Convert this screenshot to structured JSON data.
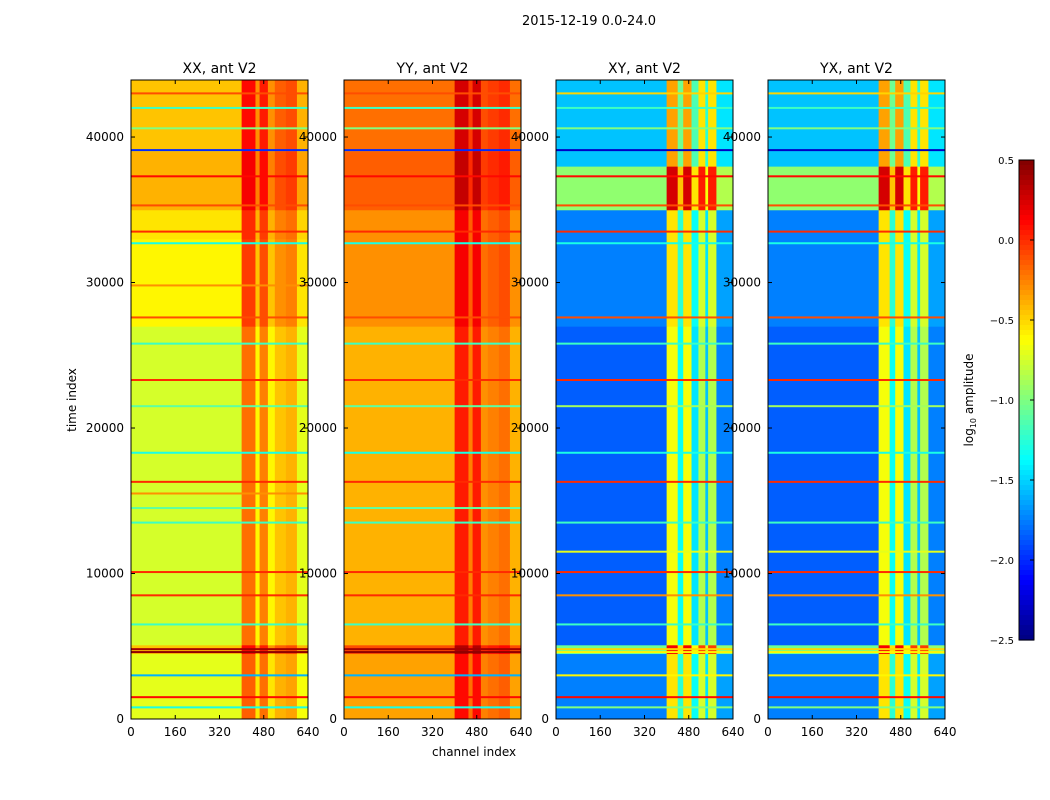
{
  "figure": {
    "suptitle": "2015-12-19 0.0-24.0",
    "ylabel": "time index",
    "xlabel": "channel index",
    "colorbar_label_prefix": "log",
    "colorbar_label_sub": "10",
    "colorbar_label_suffix": " amplitude"
  },
  "chart_data": {
    "type": "heatmap",
    "colormap": "jet",
    "clim": [
      -2.5,
      0.5
    ],
    "colorbar_ticks": [
      "0.5",
      "0.0",
      "−0.5",
      "−1.0",
      "−1.5",
      "−2.0",
      "−2.5"
    ],
    "colorbar_tick_values": [
      0.5,
      0.0,
      -0.5,
      -1.0,
      -1.5,
      -2.0,
      -2.5
    ],
    "xlim": [
      0,
      640
    ],
    "ylim": [
      0,
      43920
    ],
    "xticks": [
      0,
      160,
      320,
      480,
      640
    ],
    "yticks": [
      0,
      10000,
      20000,
      30000,
      40000
    ],
    "panels": [
      {
        "title": "XX, ant V2",
        "base": -0.75,
        "col_bands": [
          [
            0,
            400,
            0
          ],
          [
            400,
            450,
            0.55
          ],
          [
            450,
            465,
            0.15
          ],
          [
            465,
            495,
            0.5
          ],
          [
            495,
            520,
            0.15
          ],
          [
            520,
            560,
            0.3
          ],
          [
            560,
            600,
            0.35
          ],
          [
            600,
            640,
            0.05
          ]
        ],
        "row_segments": [
          [
            0,
            4500,
            0.05
          ],
          [
            4500,
            5100,
            0.3
          ],
          [
            5100,
            27000,
            0
          ],
          [
            27000,
            33000,
            0.15
          ],
          [
            33000,
            35000,
            0.2
          ],
          [
            35000,
            39000,
            0.35
          ],
          [
            39000,
            43920,
            0.3
          ]
        ],
        "stripes": [
          [
            800,
            -1.3
          ],
          [
            1500,
            0.1
          ],
          [
            3000,
            -1.6
          ],
          [
            4600,
            0.45
          ],
          [
            4800,
            0.4
          ],
          [
            6500,
            -1.2
          ],
          [
            8500,
            0.0
          ],
          [
            10100,
            0.0
          ],
          [
            13500,
            -1.2
          ],
          [
            14500,
            -1.1
          ],
          [
            15500,
            -0.3
          ],
          [
            16300,
            0.0
          ],
          [
            18300,
            -1.3
          ],
          [
            21500,
            -1.1
          ],
          [
            23300,
            0.0
          ],
          [
            25800,
            -1.2
          ],
          [
            27600,
            -0.1
          ],
          [
            29800,
            -0.3
          ],
          [
            32700,
            -1.3
          ],
          [
            33500,
            0.0
          ],
          [
            35300,
            -0.1
          ],
          [
            37300,
            0.1
          ],
          [
            39100,
            -2.0
          ],
          [
            40600,
            -1.0
          ],
          [
            42000,
            -1.2
          ],
          [
            43000,
            -0.1
          ]
        ]
      },
      {
        "title": "YY, ant V2",
        "base": -0.4,
        "col_bands": [
          [
            0,
            400,
            0
          ],
          [
            400,
            450,
            0.45
          ],
          [
            450,
            465,
            0.15
          ],
          [
            465,
            495,
            0.45
          ],
          [
            495,
            520,
            0.1
          ],
          [
            520,
            560,
            0.15
          ],
          [
            560,
            600,
            0.2
          ],
          [
            600,
            640,
            0.0
          ]
        ],
        "row_segments": [
          [
            0,
            4500,
            0.05
          ],
          [
            4500,
            5100,
            0.3
          ],
          [
            5100,
            27000,
            0
          ],
          [
            27000,
            33000,
            0.1
          ],
          [
            33000,
            35000,
            0.1
          ],
          [
            35000,
            39000,
            0.25
          ],
          [
            39000,
            43920,
            0.2
          ]
        ],
        "stripes": [
          [
            800,
            -1.3
          ],
          [
            1500,
            0.1
          ],
          [
            3000,
            -1.6
          ],
          [
            4600,
            0.45
          ],
          [
            4800,
            0.4
          ],
          [
            6500,
            -1.2
          ],
          [
            8500,
            0.0
          ],
          [
            10100,
            0.0
          ],
          [
            13500,
            -1.2
          ],
          [
            14500,
            -1.1
          ],
          [
            16300,
            0.0
          ],
          [
            18300,
            -1.3
          ],
          [
            21500,
            -1.1
          ],
          [
            23300,
            0.0
          ],
          [
            25800,
            -1.2
          ],
          [
            27600,
            -0.1
          ],
          [
            32700,
            -1.3
          ],
          [
            33500,
            0.0
          ],
          [
            35300,
            -0.1
          ],
          [
            37300,
            0.1
          ],
          [
            39100,
            -2.0
          ],
          [
            40600,
            -1.0
          ],
          [
            42000,
            -1.2
          ],
          [
            43000,
            -0.1
          ]
        ]
      },
      {
        "title": "XY, ant V2",
        "base": -1.85,
        "col_bands": [
          [
            0,
            400,
            0
          ],
          [
            400,
            440,
            1.2
          ],
          [
            440,
            460,
            0.5
          ],
          [
            460,
            490,
            1.2
          ],
          [
            490,
            515,
            0.4
          ],
          [
            515,
            540,
            1.0
          ],
          [
            540,
            550,
            0.3
          ],
          [
            550,
            580,
            1.0
          ],
          [
            580,
            640,
            0.1
          ]
        ],
        "row_segments": [
          [
            0,
            4500,
            0.1
          ],
          [
            4500,
            5100,
            0.8
          ],
          [
            5100,
            27000,
            0
          ],
          [
            27000,
            33000,
            0.1
          ],
          [
            33000,
            35000,
            0.1
          ],
          [
            35000,
            38000,
            0.9
          ],
          [
            38000,
            43920,
            0.3
          ]
        ],
        "stripes": [
          [
            800,
            -1.0
          ],
          [
            1500,
            0.1
          ],
          [
            3000,
            -0.6
          ],
          [
            4600,
            -0.6
          ],
          [
            4800,
            -0.5
          ],
          [
            6500,
            -1.2
          ],
          [
            8500,
            -0.3
          ],
          [
            10100,
            0.0
          ],
          [
            11500,
            -0.7
          ],
          [
            13500,
            -1.2
          ],
          [
            16300,
            0.0
          ],
          [
            18300,
            -1.3
          ],
          [
            21500,
            -0.9
          ],
          [
            23300,
            0.0
          ],
          [
            25800,
            -1.2
          ],
          [
            27600,
            -0.1
          ],
          [
            32700,
            -1.3
          ],
          [
            33500,
            0.0
          ],
          [
            35300,
            -0.1
          ],
          [
            37300,
            0.1
          ],
          [
            39100,
            -2.3
          ],
          [
            40600,
            -1.0
          ],
          [
            42000,
            -1.2
          ],
          [
            43000,
            -0.5
          ]
        ]
      },
      {
        "title": "YX, ant V2",
        "base": -1.85,
        "col_bands": [
          [
            0,
            400,
            0
          ],
          [
            400,
            440,
            1.2
          ],
          [
            440,
            460,
            0.5
          ],
          [
            460,
            490,
            1.2
          ],
          [
            490,
            515,
            0.4
          ],
          [
            515,
            540,
            1.0
          ],
          [
            540,
            550,
            0.3
          ],
          [
            550,
            580,
            1.0
          ],
          [
            580,
            640,
            0.1
          ]
        ],
        "row_segments": [
          [
            0,
            4500,
            0.1
          ],
          [
            4500,
            5100,
            0.8
          ],
          [
            5100,
            27000,
            0
          ],
          [
            27000,
            33000,
            0.1
          ],
          [
            33000,
            35000,
            0.1
          ],
          [
            35000,
            38000,
            0.9
          ],
          [
            38000,
            43920,
            0.3
          ]
        ],
        "stripes": [
          [
            800,
            -1.0
          ],
          [
            1500,
            0.1
          ],
          [
            3000,
            -0.6
          ],
          [
            4600,
            -0.6
          ],
          [
            4800,
            -0.5
          ],
          [
            6500,
            -1.2
          ],
          [
            8500,
            -0.3
          ],
          [
            10100,
            0.0
          ],
          [
            11500,
            -0.7
          ],
          [
            13500,
            -1.2
          ],
          [
            16300,
            0.0
          ],
          [
            18300,
            -1.3
          ],
          [
            21500,
            -0.9
          ],
          [
            23300,
            0.0
          ],
          [
            25800,
            -1.2
          ],
          [
            27600,
            -0.1
          ],
          [
            32700,
            -1.3
          ],
          [
            33500,
            0.0
          ],
          [
            35300,
            -0.1
          ],
          [
            37300,
            0.1
          ],
          [
            39100,
            -2.3
          ],
          [
            40600,
            -1.0
          ],
          [
            42000,
            -1.2
          ],
          [
            43000,
            -0.5
          ]
        ]
      }
    ]
  }
}
